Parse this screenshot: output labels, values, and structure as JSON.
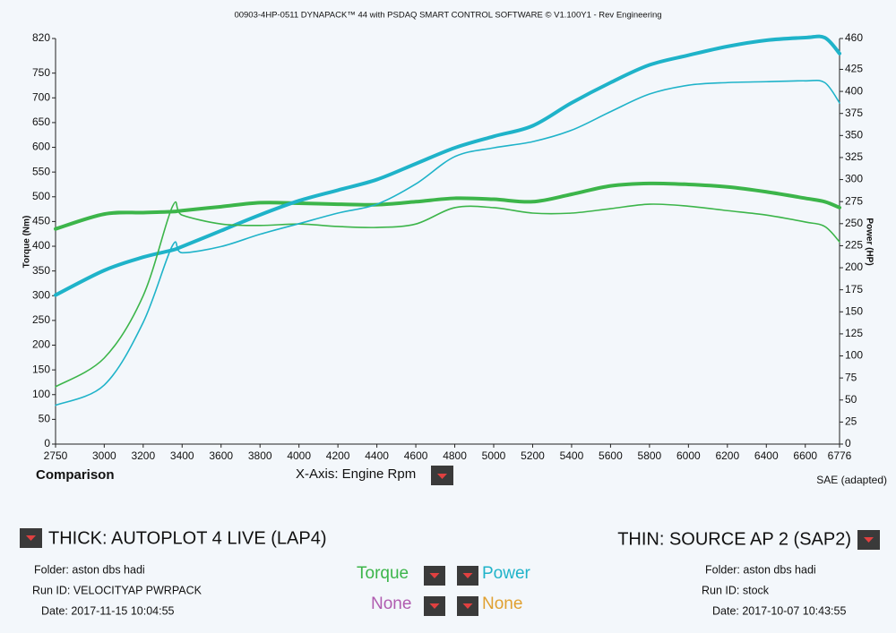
{
  "chart_data": {
    "type": "line",
    "title": "00903-4HP-0511 DYNAPACK™ 44 with PSDAQ SMART CONTROL SOFTWARE © V1.100Y1 - Rev Engineering",
    "y_label": "Torque (Nm)",
    "y2_label": "Power (HP)",
    "x": [
      2750,
      3000,
      3200,
      3350,
      3400,
      3600,
      3800,
      4000,
      4200,
      4400,
      4600,
      4800,
      5000,
      5200,
      5400,
      5600,
      5800,
      6000,
      6200,
      6400,
      6600,
      6700,
      6776
    ],
    "series": [
      {
        "color": "#3cb54a",
        "width": 4,
        "axis": "y",
        "values": [
          435,
          465,
          468,
          470,
          472,
          480,
          488,
          487,
          485,
          484,
          490,
          497,
          495,
          490,
          505,
          522,
          527,
          525,
          520,
          510,
          497,
          490,
          478
        ]
      },
      {
        "color": "#1fb3c9",
        "width": 4,
        "axis": "y2",
        "values": [
          169,
          197,
          212,
          220,
          224,
          242,
          260,
          276,
          288,
          300,
          318,
          336,
          349,
          361,
          387,
          410,
          430,
          441,
          451,
          458,
          461,
          461,
          443
        ]
      },
      {
        "color": "#3cb54a",
        "width": 1.6,
        "axis": "y",
        "values": [
          116,
          174,
          300,
          480,
          463,
          445,
          442,
          445,
          440,
          438,
          445,
          478,
          478,
          467,
          467,
          476,
          485,
          481,
          472,
          463,
          449,
          440,
          409
        ]
      },
      {
        "color": "#1fb3c9",
        "width": 1.6,
        "axis": "y2",
        "values": [
          44,
          67,
          138,
          225,
          217,
          224,
          238,
          250,
          262,
          272,
          295,
          326,
          336,
          343,
          356,
          377,
          397,
          407,
          410,
          411,
          412,
          410,
          387
        ]
      }
    ],
    "xlim": [
      2750,
      6776
    ],
    "xticks": [
      2750,
      3000,
      3200,
      3400,
      3600,
      3800,
      4000,
      4200,
      4400,
      4600,
      4800,
      5000,
      5200,
      5400,
      5600,
      5800,
      6000,
      6200,
      6400,
      6600,
      6776
    ],
    "ylim": [
      0,
      820
    ],
    "yticks": [
      0,
      50,
      100,
      150,
      200,
      250,
      300,
      350,
      400,
      450,
      500,
      550,
      600,
      650,
      700,
      750,
      820
    ],
    "y2lim": [
      0,
      460
    ],
    "y2ticks": [
      0,
      25,
      50,
      75,
      100,
      125,
      150,
      175,
      200,
      225,
      250,
      275,
      300,
      325,
      350,
      375,
      400,
      425,
      460
    ],
    "grid": false
  },
  "ui": {
    "comparison": "Comparison",
    "x_axis_selector": "X-Axis: Engine Rpm",
    "standard": "SAE (adapted)",
    "thick_run": {
      "label": "THICK: AUTOPLOT 4 LIVE (LAP4)",
      "folder": "Folder: aston dbs hadi",
      "run_id": "Run ID: VELOCITYAP PWRPACK",
      "date": "Date: 2017-11-15 10:04:55"
    },
    "thin_run": {
      "label": "THIN: SOURCE AP 2 (SAP2)",
      "folder": "Folder: aston dbs hadi",
      "run_id": "Run ID: stock",
      "date": "Date: 2017-10-07 10:43:55"
    },
    "selectors": [
      "Torque",
      "Power",
      "None",
      "None"
    ]
  }
}
